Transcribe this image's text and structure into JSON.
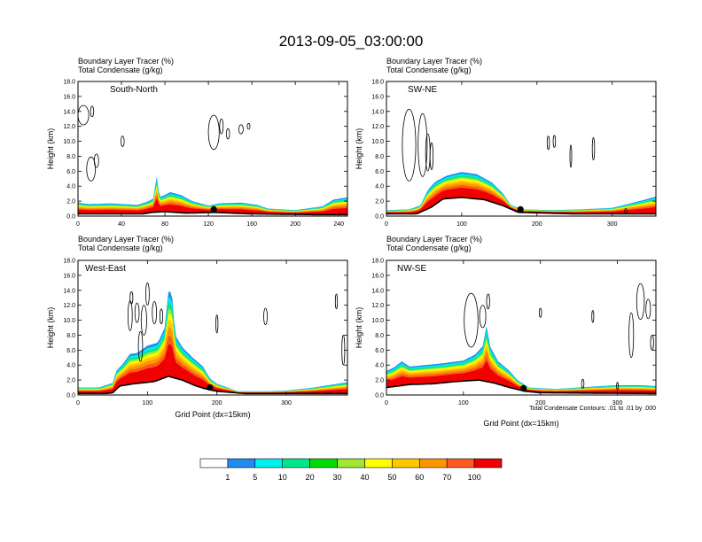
{
  "figure": {
    "title": "2013-09-05_03:00:00",
    "footnote": "Total Condensate Contours: .01 to .01 by .000"
  },
  "colorbar": {
    "colors": [
      "#ffffff",
      "#1e8cf0",
      "#00f0f0",
      "#00e68c",
      "#00dc00",
      "#a0e632",
      "#ffff00",
      "#ffc800",
      "#ff9600",
      "#ff5a1e",
      "#f00000"
    ],
    "labels": [
      "1",
      "5",
      "10",
      "20",
      "30",
      "40",
      "50",
      "60",
      "70",
      "100"
    ]
  },
  "chart_data": [
    {
      "type": "cross-section",
      "region": "South-North",
      "line1": "Boundary Layer Tracer   (%)",
      "line2": "Total Condensate   (g/kg)",
      "xlabel": "",
      "ylabel": "Height (km)",
      "xlim": [
        0,
        248
      ],
      "ylim": [
        0,
        18
      ],
      "xticks": [
        0,
        40,
        80,
        120,
        160,
        200,
        240
      ],
      "xtick_labels": [
        "0",
        "40",
        "80",
        "120",
        "160",
        "200",
        "240"
      ],
      "yticks": [
        0,
        2,
        4,
        6,
        8,
        10,
        12,
        14,
        16,
        18
      ],
      "ytick_labels": [
        "0.0",
        "2.0",
        "4.0",
        "6.0",
        "8.0",
        "10.0",
        "12.0",
        "14.0",
        "16.0",
        "18.0"
      ],
      "terrain": [
        [
          0,
          0.3
        ],
        [
          60,
          0.3
        ],
        [
          68,
          0.5
        ],
        [
          80,
          0.6
        ],
        [
          100,
          0.4
        ],
        [
          125,
          0.5
        ],
        [
          160,
          0.3
        ],
        [
          220,
          0.2
        ],
        [
          248,
          0.2
        ]
      ],
      "pbl_top": [
        [
          0,
          1.8
        ],
        [
          10,
          1.6
        ],
        [
          30,
          1.7
        ],
        [
          55,
          1.5
        ],
        [
          65,
          2.0
        ],
        [
          70,
          2.4
        ],
        [
          72,
          6.0
        ],
        [
          75,
          2.5
        ],
        [
          85,
          3.2
        ],
        [
          95,
          2.8
        ],
        [
          105,
          2.0
        ],
        [
          120,
          1.4
        ],
        [
          130,
          1.7
        ],
        [
          150,
          1.8
        ],
        [
          165,
          1.5
        ],
        [
          175,
          1.0
        ],
        [
          200,
          0.8
        ],
        [
          225,
          1.3
        ],
        [
          235,
          2.2
        ],
        [
          248,
          2.5
        ]
      ],
      "station": [
        125,
        0.9
      ],
      "clouds": [
        [
          5,
          13.5,
          5,
          1.3
        ],
        [
          13,
          14,
          1.5,
          0.7
        ],
        [
          12,
          6.3,
          4,
          1.6
        ],
        [
          17,
          7.4,
          2,
          0.9
        ],
        [
          41,
          10,
          1.5,
          0.7
        ],
        [
          125,
          11.2,
          5,
          2.3
        ],
        [
          132,
          12,
          1.6,
          1
        ],
        [
          138,
          11,
          1.5,
          0.7
        ],
        [
          150,
          11.6,
          2,
          0.6
        ],
        [
          157,
          12,
          1.2,
          0.4
        ]
      ]
    },
    {
      "type": "cross-section",
      "region": "SW-NE",
      "line1": "Boundary Layer Tracer   (%)",
      "line2": "Total Condensate   (g/kg)",
      "xlabel": "",
      "ylabel": "Height (km)",
      "xlim": [
        0,
        358
      ],
      "ylim": [
        0,
        18
      ],
      "xticks": [
        0,
        100,
        200,
        300
      ],
      "xtick_labels": [
        "0",
        "100",
        "200",
        "300"
      ],
      "yticks": [
        0,
        2,
        4,
        6,
        8,
        10,
        12,
        14,
        16,
        18
      ],
      "ytick_labels": [
        "0.0",
        "2.0",
        "4.0",
        "6.0",
        "8.0",
        "10.0",
        "12.0",
        "14.0",
        "16.0",
        "18.0"
      ],
      "terrain": [
        [
          0,
          0.3
        ],
        [
          40,
          0.3
        ],
        [
          60,
          1.2
        ],
        [
          75,
          2.3
        ],
        [
          100,
          2.5
        ],
        [
          130,
          2.2
        ],
        [
          155,
          1.4
        ],
        [
          175,
          0.5
        ],
        [
          250,
          0.3
        ],
        [
          358,
          0.3
        ]
      ],
      "pbl_top": [
        [
          0,
          0.8
        ],
        [
          30,
          0.9
        ],
        [
          45,
          1.4
        ],
        [
          55,
          3.5
        ],
        [
          65,
          4.6
        ],
        [
          80,
          5.4
        ],
        [
          100,
          5.9
        ],
        [
          120,
          5.6
        ],
        [
          140,
          4.5
        ],
        [
          155,
          3.0
        ],
        [
          165,
          1.5
        ],
        [
          180,
          0.9
        ],
        [
          220,
          0.8
        ],
        [
          260,
          0.9
        ],
        [
          300,
          1.1
        ],
        [
          320,
          1.6
        ],
        [
          340,
          2.1
        ],
        [
          358,
          2.6
        ]
      ],
      "station": [
        178,
        0.9
      ],
      "clouds": [
        [
          30,
          9.5,
          9,
          4.8
        ],
        [
          48,
          9.5,
          6,
          4.2
        ],
        [
          55,
          8.5,
          3,
          2.5
        ],
        [
          60,
          8,
          2,
          1.8
        ],
        [
          215,
          9.8,
          1.5,
          0.9
        ],
        [
          223,
          10,
          1.5,
          0.8
        ],
        [
          245,
          8,
          1.2,
          1.5
        ],
        [
          275,
          9,
          1.5,
          1.5
        ],
        [
          318,
          0.7,
          1.5,
          0.3
        ]
      ]
    },
    {
      "type": "cross-section",
      "region": "West-East",
      "line1": "Boundary Layer Tracer   (%)",
      "line2": "Total Condensate   (g/kg)",
      "xlabel": "Grid Point (dx=15km)",
      "ylabel": "Height (km)",
      "xlim": [
        0,
        388
      ],
      "ylim": [
        0,
        18
      ],
      "xticks": [
        0,
        100,
        200,
        300
      ],
      "xtick_labels": [
        "0",
        "100",
        "200",
        "300"
      ],
      "yticks": [
        0,
        2,
        4,
        6,
        8,
        10,
        12,
        14,
        16,
        18
      ],
      "ytick_labels": [
        "0.0",
        "2.0",
        "4.0",
        "6.0",
        "8.0",
        "10.0",
        "12.0",
        "14.0",
        "16.0",
        "18.0"
      ],
      "terrain": [
        [
          0,
          0.2
        ],
        [
          40,
          0.2
        ],
        [
          50,
          0.3
        ],
        [
          60,
          1.2
        ],
        [
          80,
          1.5
        ],
        [
          110,
          1.8
        ],
        [
          130,
          2.5
        ],
        [
          150,
          2.0
        ],
        [
          170,
          1.2
        ],
        [
          185,
          0.8
        ],
        [
          200,
          0.5
        ],
        [
          240,
          0.2
        ],
        [
          300,
          0.2
        ],
        [
          388,
          0.2
        ]
      ],
      "pbl_top": [
        [
          0,
          1.0
        ],
        [
          30,
          1.0
        ],
        [
          50,
          1.6
        ],
        [
          55,
          3.2
        ],
        [
          65,
          4.2
        ],
        [
          75,
          5.5
        ],
        [
          85,
          5.6
        ],
        [
          100,
          6.6
        ],
        [
          115,
          7.0
        ],
        [
          125,
          9.0
        ],
        [
          130,
          13.8
        ],
        [
          135,
          13.8
        ],
        [
          140,
          8.0
        ],
        [
          150,
          6.4
        ],
        [
          165,
          5.0
        ],
        [
          180,
          3.8
        ],
        [
          190,
          2.2
        ],
        [
          200,
          1.5
        ],
        [
          230,
          0.5
        ],
        [
          270,
          0.5
        ],
        [
          300,
          0.6
        ],
        [
          340,
          1.0
        ],
        [
          360,
          1.3
        ],
        [
          388,
          1.7
        ]
      ],
      "station": [
        190,
        1.0
      ],
      "clouds": [
        [
          75,
          10.6,
          3,
          2.0
        ],
        [
          77,
          13,
          2,
          0.8
        ],
        [
          85,
          11,
          3,
          1.3
        ],
        [
          90,
          6.5,
          3,
          2.0
        ],
        [
          95,
          10,
          4,
          2.0
        ],
        [
          100,
          13.5,
          2.5,
          1.5
        ],
        [
          110,
          11,
          3,
          1.5
        ],
        [
          120,
          10.5,
          2,
          1.0
        ],
        [
          200,
          9.5,
          1.5,
          1.2
        ],
        [
          270,
          10.5,
          2.5,
          1.1
        ],
        [
          372,
          12.5,
          1.5,
          1.0
        ],
        [
          382,
          6.0,
          2,
          2.0
        ]
      ]
    },
    {
      "type": "cross-section",
      "region": "NW-SE",
      "line1": "Boundary Layer Tracer   (%)",
      "line2": "Total Condensate   (g/kg)",
      "xlabel": "Grid Point (dx=15km)",
      "ylabel": "Height (km)",
      "xlim": [
        0,
        350
      ],
      "ylim": [
        0,
        18
      ],
      "xticks": [
        0,
        100,
        200,
        300
      ],
      "xtick_labels": [
        "0",
        "100",
        "200",
        "300"
      ],
      "yticks": [
        0,
        2,
        4,
        6,
        8,
        10,
        12,
        14,
        16,
        18
      ],
      "ytick_labels": [
        "0.0",
        "2.0",
        "4.0",
        "6.0",
        "8.0",
        "10.0",
        "12.0",
        "14.0",
        "16.0",
        "18.0"
      ],
      "terrain": [
        [
          0,
          1.0
        ],
        [
          30,
          1.4
        ],
        [
          60,
          1.5
        ],
        [
          90,
          1.8
        ],
        [
          120,
          2.0
        ],
        [
          140,
          1.6
        ],
        [
          160,
          1.0
        ],
        [
          180,
          0.5
        ],
        [
          200,
          0.3
        ],
        [
          350,
          0.2
        ]
      ],
      "pbl_top": [
        [
          0,
          3.2
        ],
        [
          10,
          3.7
        ],
        [
          20,
          4.5
        ],
        [
          30,
          3.8
        ],
        [
          50,
          4.0
        ],
        [
          70,
          4.2
        ],
        [
          100,
          4.6
        ],
        [
          115,
          5.4
        ],
        [
          125,
          6.5
        ],
        [
          130,
          9.2
        ],
        [
          135,
          6.4
        ],
        [
          145,
          4.5
        ],
        [
          160,
          3.2
        ],
        [
          170,
          2.0
        ],
        [
          185,
          1.0
        ],
        [
          220,
          0.8
        ],
        [
          250,
          1.0
        ],
        [
          280,
          1.2
        ],
        [
          300,
          1.3
        ],
        [
          330,
          1.3
        ],
        [
          350,
          1.2
        ]
      ],
      "station": [
        178,
        0.9
      ],
      "clouds": [
        [
          110,
          10,
          9,
          3.6
        ],
        [
          125,
          10.5,
          4,
          1.5
        ],
        [
          132,
          12.5,
          2,
          1.0
        ],
        [
          200,
          11,
          1.5,
          0.6
        ],
        [
          268,
          10.5,
          1.3,
          0.8
        ],
        [
          318,
          8,
          3,
          3.0
        ],
        [
          330,
          12.5,
          5,
          2.4
        ],
        [
          340,
          11.5,
          3,
          1.3
        ],
        [
          345,
          7,
          2,
          1.0
        ],
        [
          255,
          1.5,
          1.5,
          0.6
        ],
        [
          300,
          1.2,
          1.2,
          0.5
        ]
      ]
    }
  ]
}
